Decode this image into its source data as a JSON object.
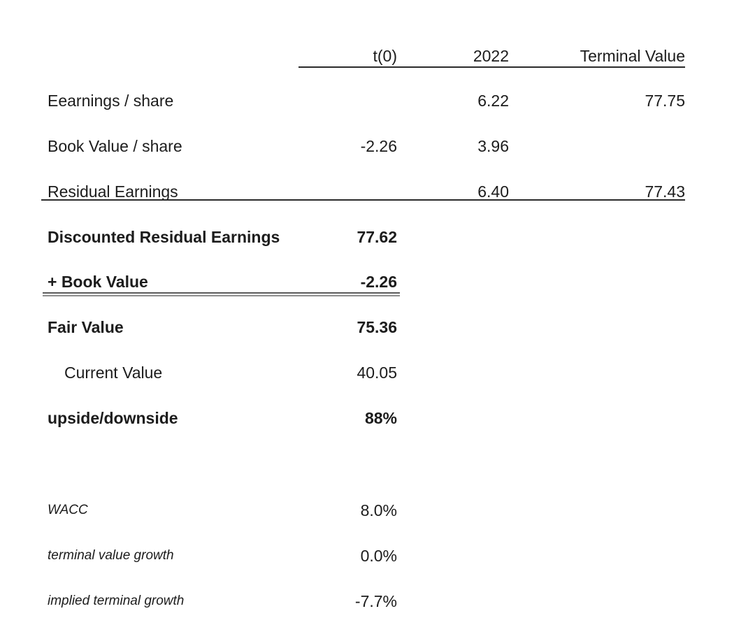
{
  "table": {
    "header": {
      "t0": "t(0)",
      "y2022": "2022",
      "terminal": "Terminal Value"
    },
    "body_rows": [
      {
        "label": "Eearnings / share",
        "t0": "",
        "y2022": "6.22",
        "terminal": "77.75"
      },
      {
        "label": "Book Value / share",
        "t0": "-2.26",
        "y2022": "3.96",
        "terminal": ""
      },
      {
        "label": "Residual Earnings",
        "t0": "",
        "y2022": "6.40",
        "terminal": "77.43"
      }
    ],
    "summary_rows": [
      {
        "label": "Discounted Residual Earnings",
        "value": "77.62",
        "emphasis": "bold"
      },
      {
        "label": "+ Book Value",
        "value": "-2.26",
        "emphasis": "bold"
      },
      {
        "label": "Fair Value",
        "value": "75.36",
        "emphasis": "bold"
      },
      {
        "label": "Current Value",
        "value": "40.05",
        "emphasis": "regular"
      },
      {
        "label": "upside/downside",
        "value": "88%",
        "emphasis": "bold"
      }
    ],
    "assumption_rows": [
      {
        "label": "WACC",
        "value": "8.0%"
      },
      {
        "label": "terminal value growth",
        "value": "0.0%"
      },
      {
        "label": "implied terminal growth",
        "value": "-7.7%"
      }
    ]
  },
  "colors": {
    "background": "#ffffff",
    "text": "#1c1c1c",
    "rule": "#2b2b2b",
    "double_rule_top": "#5a5a5a",
    "double_rule_bottom": "#8f8f8f"
  }
}
